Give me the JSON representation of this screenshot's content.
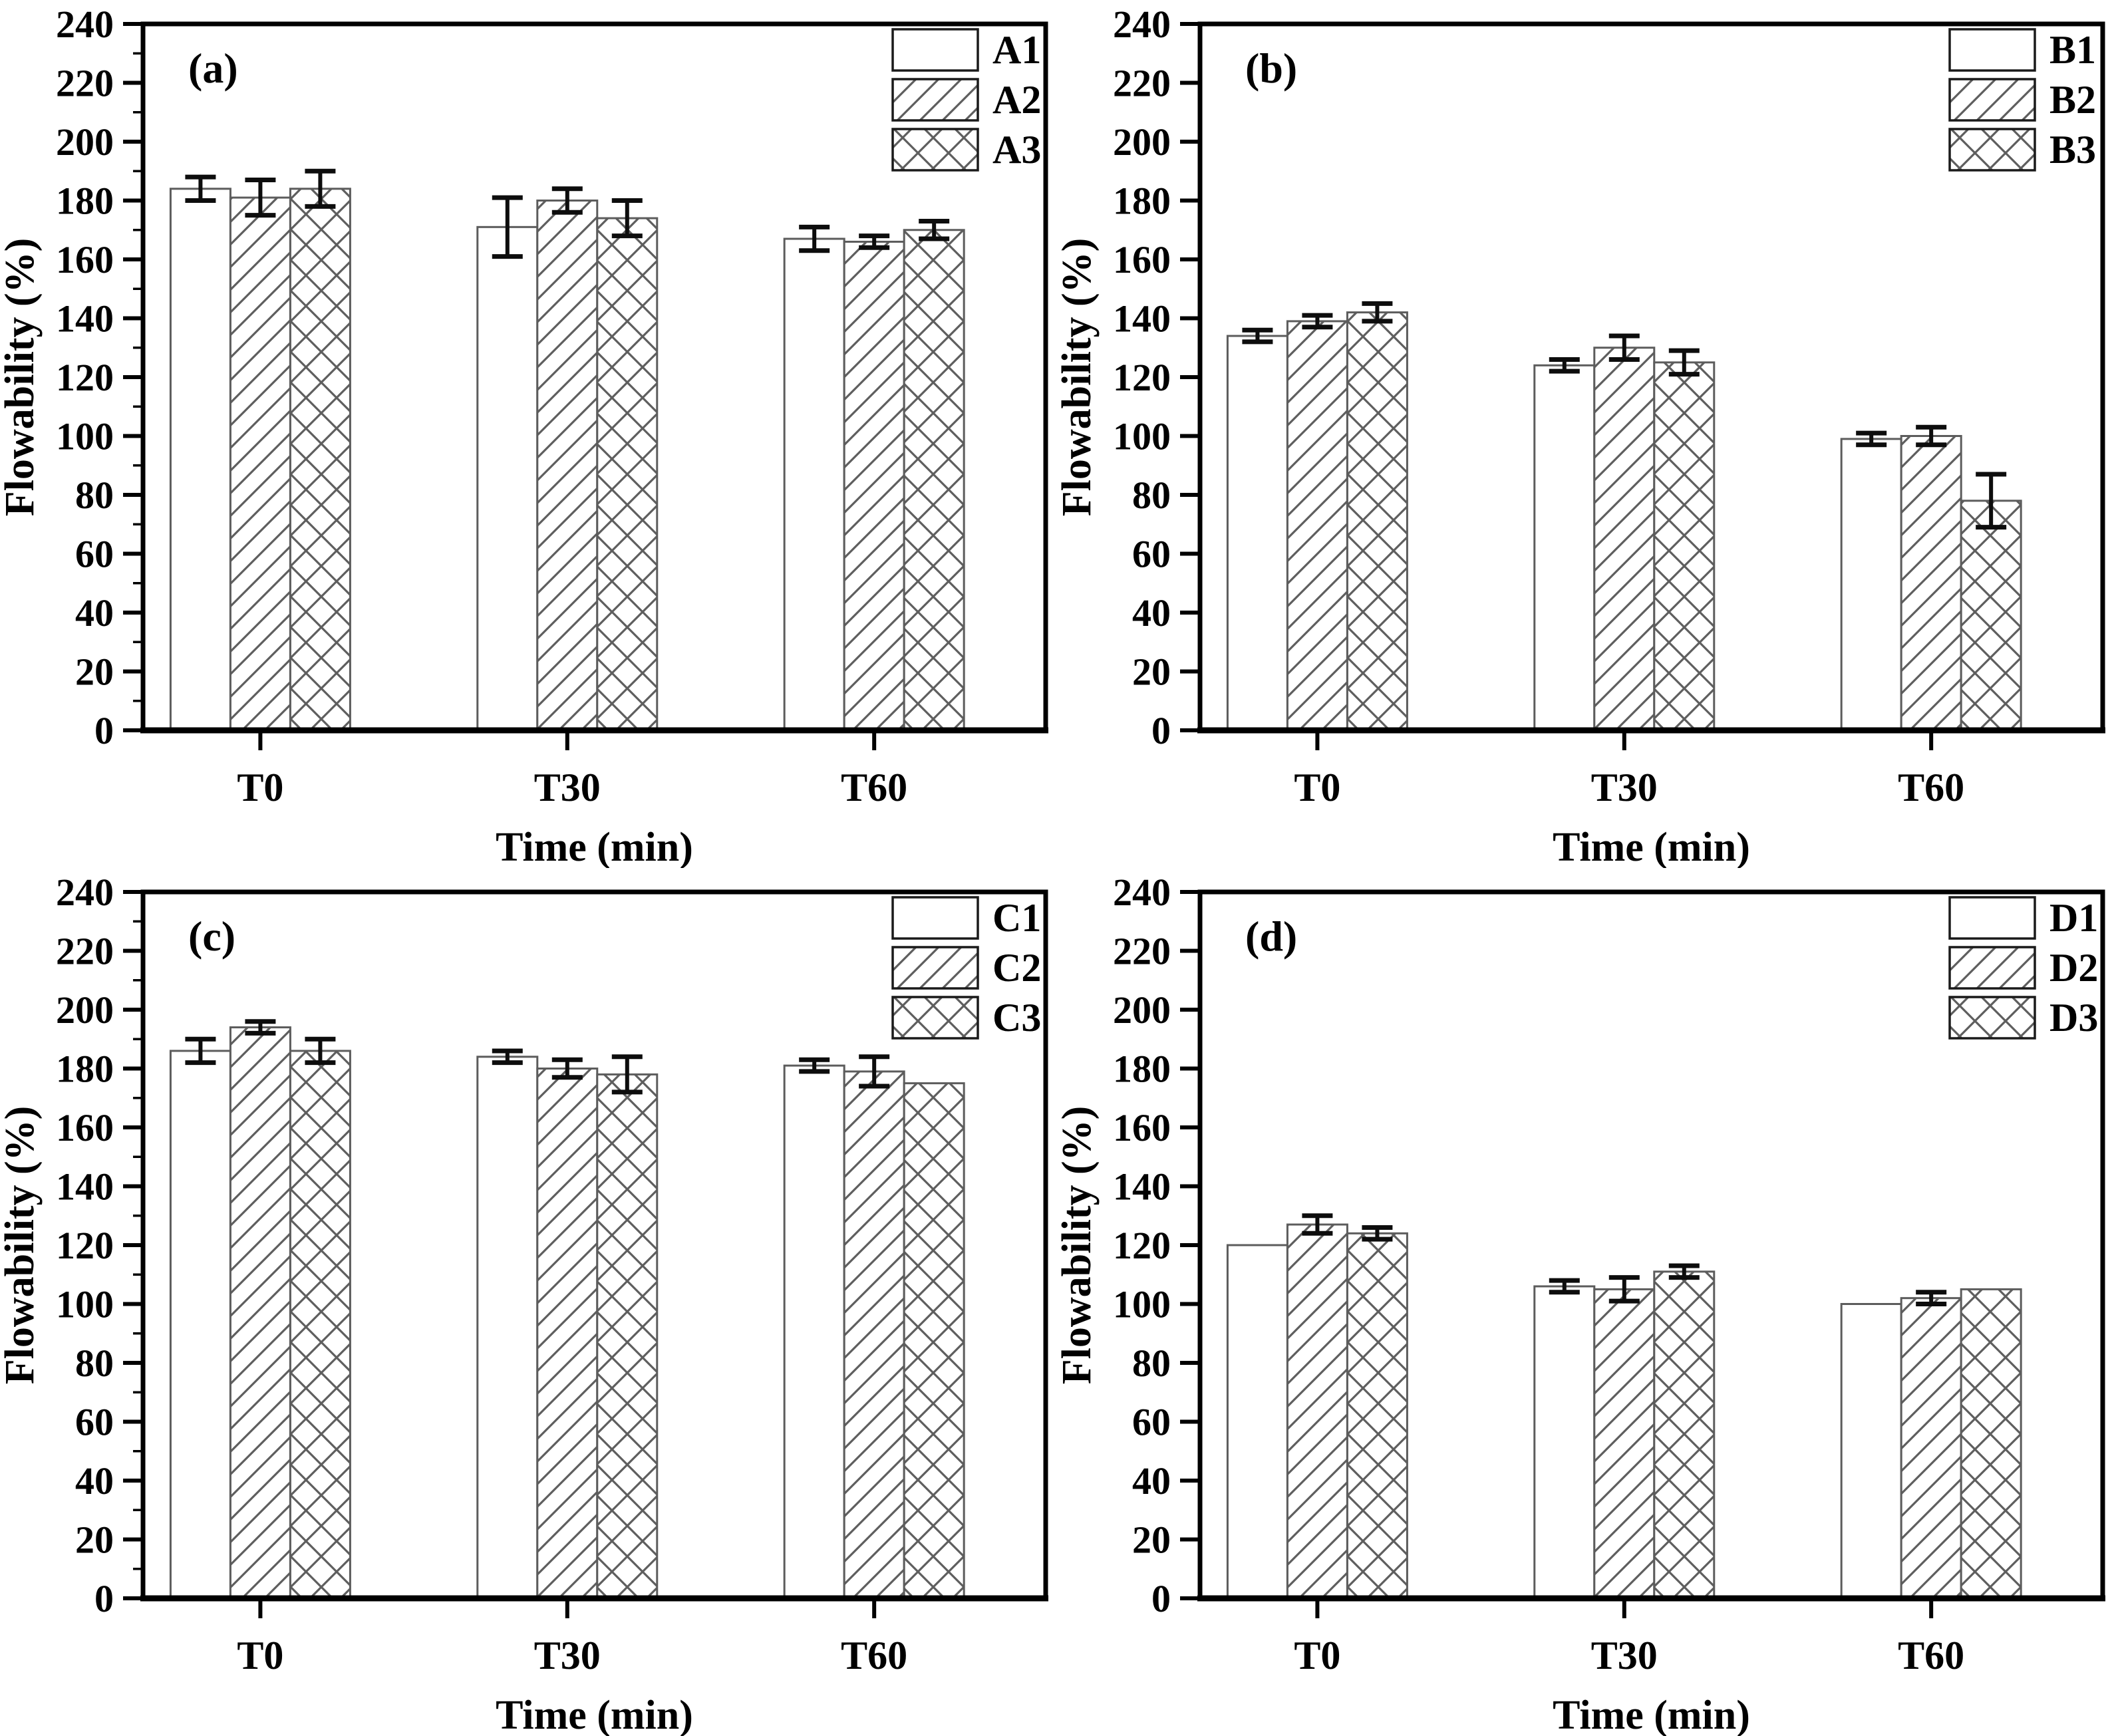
{
  "figure": {
    "background": "#ffffff",
    "text_color": "#000000",
    "axis_color": "#000000",
    "bar_fill": "#ffffff",
    "bar_stroke": "#5c5c5c",
    "hatch_color": "#5e5e5e",
    "error_color": "#0d0d0d",
    "legend_swatch_stroke": "#1a1a1a"
  },
  "chart_data": [
    {
      "type": "bar",
      "panel_label": "(a)",
      "xlabel": "Time (min)",
      "ylabel": "Flowability (%)",
      "categories": [
        "T0",
        "T30",
        "T60"
      ],
      "ylim": [
        0,
        240
      ],
      "ytick_step": 20,
      "minor_tick_step": 10,
      "minor_ticks": true,
      "grid": false,
      "legend_position": "top-right",
      "series": [
        {
          "name": "A1",
          "pattern": "solid-white",
          "values": [
            184,
            171,
            167
          ],
          "errors": [
            4,
            10,
            4
          ]
        },
        {
          "name": "A2",
          "pattern": "diagonal-hatch",
          "values": [
            181,
            180,
            166
          ],
          "errors": [
            6,
            4,
            2
          ]
        },
        {
          "name": "A3",
          "pattern": "crosshatch",
          "values": [
            184,
            174,
            170
          ],
          "errors": [
            6,
            6,
            3
          ]
        }
      ]
    },
    {
      "type": "bar",
      "panel_label": "(b)",
      "xlabel": "Time (min)",
      "ylabel": "Flowability (%)",
      "categories": [
        "T0",
        "T30",
        "T60"
      ],
      "ylim": [
        0,
        240
      ],
      "ytick_step": 20,
      "minor_tick_step": 10,
      "minor_ticks": false,
      "grid": false,
      "legend_position": "top-right",
      "series": [
        {
          "name": "B1",
          "pattern": "solid-white",
          "values": [
            134,
            124,
            99
          ],
          "errors": [
            2,
            2,
            2
          ]
        },
        {
          "name": "B2",
          "pattern": "diagonal-hatch",
          "values": [
            139,
            130,
            100
          ],
          "errors": [
            2,
            4,
            3
          ]
        },
        {
          "name": "B3",
          "pattern": "crosshatch",
          "values": [
            142,
            125,
            78
          ],
          "errors": [
            3,
            4,
            9
          ]
        }
      ]
    },
    {
      "type": "bar",
      "panel_label": "(c)",
      "xlabel": "Time (min)",
      "ylabel": "Flowability (%)",
      "categories": [
        "T0",
        "T30",
        "T60"
      ],
      "ylim": [
        0,
        240
      ],
      "ytick_step": 20,
      "minor_tick_step": 10,
      "minor_ticks": true,
      "grid": false,
      "legend_position": "top-right",
      "series": [
        {
          "name": "C1",
          "pattern": "solid-white",
          "values": [
            186,
            184,
            181
          ],
          "errors": [
            4,
            2,
            2
          ]
        },
        {
          "name": "C2",
          "pattern": "diagonal-hatch",
          "values": [
            194,
            180,
            179
          ],
          "errors": [
            2,
            3,
            5
          ]
        },
        {
          "name": "C3",
          "pattern": "crosshatch",
          "values": [
            186,
            178,
            175
          ],
          "errors": [
            4,
            6,
            0
          ]
        }
      ]
    },
    {
      "type": "bar",
      "panel_label": "(d)",
      "xlabel": "Time (min)",
      "ylabel": "Flowability (%)",
      "categories": [
        "T0",
        "T30",
        "T60"
      ],
      "ylim": [
        0,
        240
      ],
      "ytick_step": 20,
      "minor_tick_step": 10,
      "minor_ticks": false,
      "grid": false,
      "legend_position": "top-right",
      "series": [
        {
          "name": "D1",
          "pattern": "solid-white",
          "values": [
            120,
            106,
            100
          ],
          "errors": [
            0,
            2,
            0
          ]
        },
        {
          "name": "D2",
          "pattern": "diagonal-hatch",
          "values": [
            127,
            105,
            102
          ],
          "errors": [
            3,
            4,
            2
          ]
        },
        {
          "name": "D3",
          "pattern": "crosshatch",
          "values": [
            124,
            111,
            105
          ],
          "errors": [
            2,
            2,
            0
          ]
        }
      ]
    }
  ]
}
